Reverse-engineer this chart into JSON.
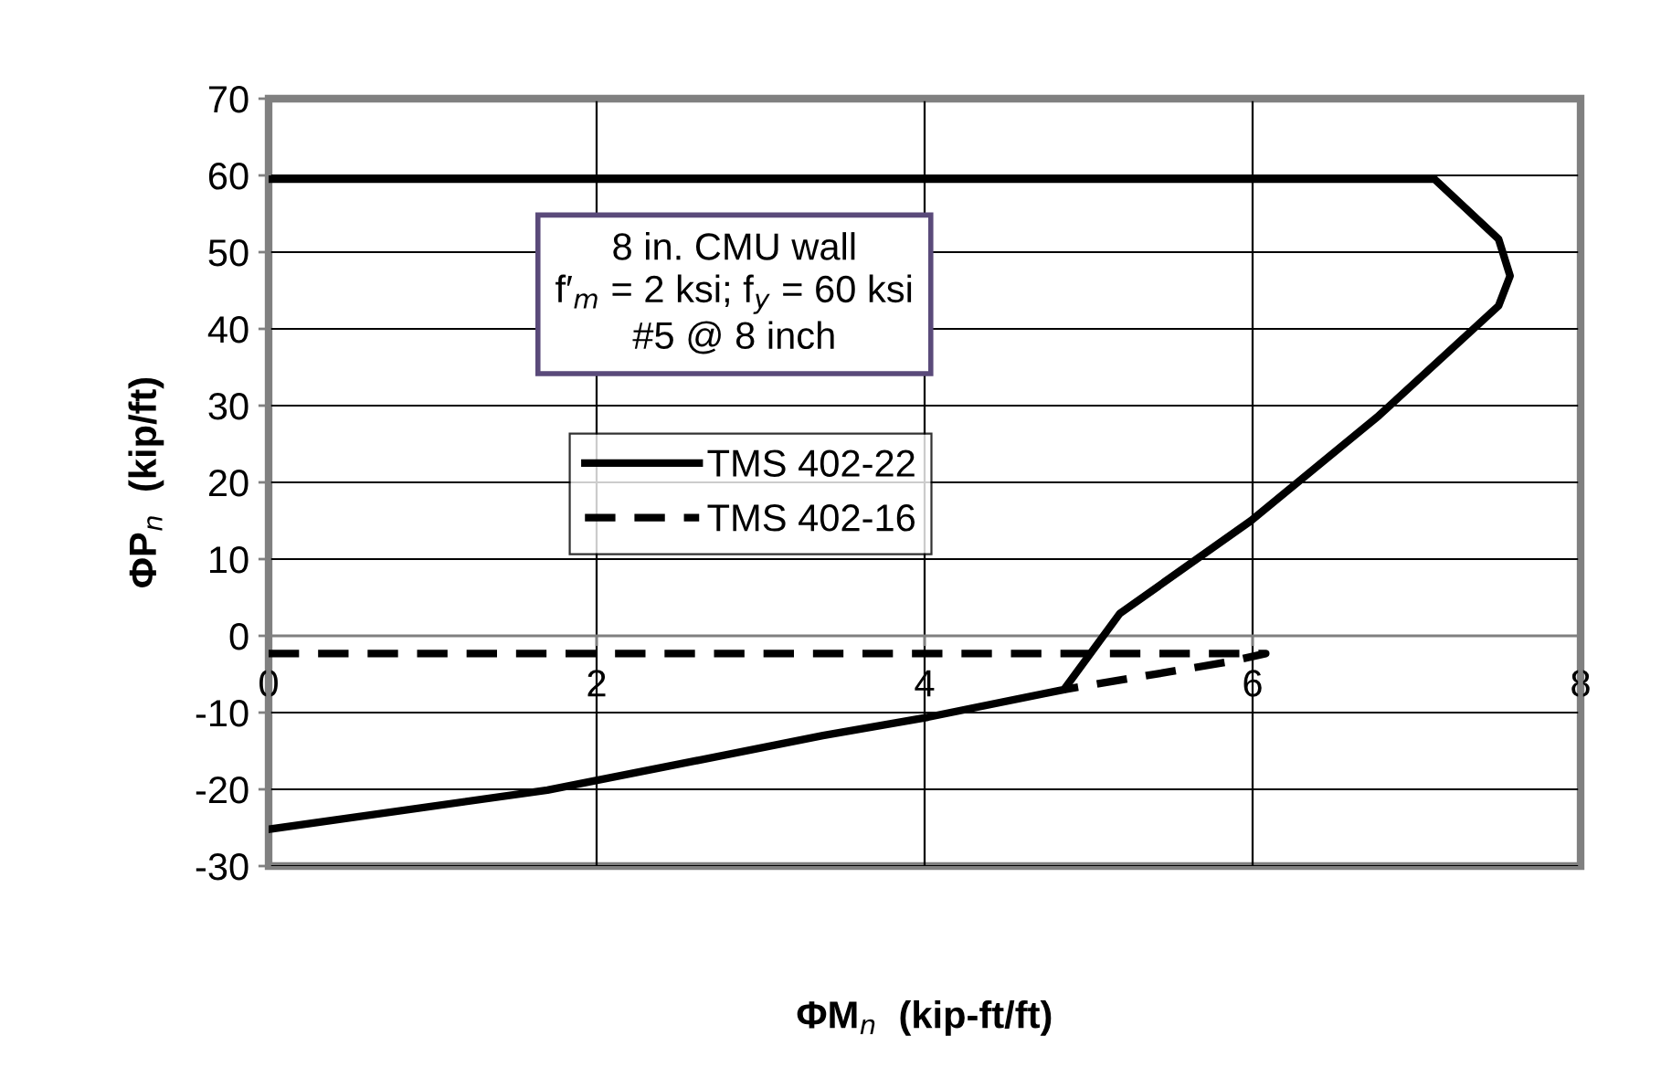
{
  "chart_data": {
    "type": "line",
    "xlabel": "ΦM$_{n}$  (kip-ft/ft)",
    "ylabel": "ΦP$_{n}$  (kip/ft)",
    "annotations": [
      "8 in. CMU wall\nf′$_{m}$ = 2 ksi; f$_{y}$ = 60 ksi\n#5 @ 8 inch"
    ],
    "series": [
      {
        "name": "TMS 402-22",
        "color": "#000000",
        "line_style": "solid",
        "x": [
          0,
          7.11,
          7.5,
          7.57,
          7.5,
          6.77,
          5.99,
          5.19,
          4.85,
          4.02,
          3.38,
          1.7,
          0
        ],
        "values": [
          59.5,
          59.5,
          51.7,
          46.9,
          43,
          28.7,
          15,
          2.9,
          -7,
          -10.6,
          -13,
          -20.1,
          -25.2
        ]
      },
      {
        "name": "TMS 402-16",
        "color": "#000000",
        "line_style": "dashed",
        "x": [
          0,
          6.08,
          5.85,
          4.85
        ],
        "values": [
          -2.3,
          -2.3,
          -3.4,
          -7
        ]
      }
    ],
    "xlim": [
      0,
      8
    ],
    "ylim": [
      -30,
      70
    ],
    "xticks": [
      0,
      2,
      4,
      6,
      8
    ],
    "yticks": [
      -30,
      -20,
      -10,
      0,
      10,
      20,
      30,
      40,
      50,
      60,
      70
    ],
    "grid": true,
    "legend": "center left",
    "marker": "none"
  }
}
